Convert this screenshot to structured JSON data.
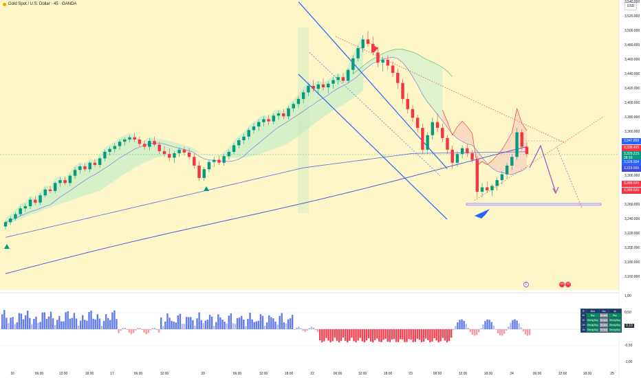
{
  "header": {
    "symbol_title": "Gold Spot / U.S. Dollar · 45 · OANDA",
    "currency": "USD"
  },
  "colors": {
    "up": "#089981",
    "down": "#f23645",
    "ma_fast": "#5b6be0",
    "ma_slow": "#3c4bd8",
    "channel": "#2962ff",
    "projection": "#9c5fc9",
    "bg_yellow": "#fdf6c4"
  },
  "price_axis": {
    "ticks": [
      "3,540.000",
      "3,520.000",
      "3,500.000",
      "3,480.000",
      "3,460.000",
      "3,440.000",
      "3,420.000",
      "3,400.000",
      "3,380.000",
      "3,360.000",
      "3,340.000",
      "3,320.000",
      "3,300.000",
      "3,280.000",
      "3,260.000",
      "3,240.000",
      "3,220.000",
      "3,200.000",
      "3,180.000",
      "3,160.000"
    ],
    "labels": [
      {
        "text": "3,347.899",
        "price": 3347.899,
        "color": "#2962ff"
      },
      {
        "text": "3,338.405",
        "price": 3338.405,
        "color": "#f23645"
      },
      {
        "text": "3,329.215",
        "price": 3329.215,
        "color": "#089981"
      },
      {
        "text": "28:16",
        "price": 3324.0,
        "color": "#089981"
      },
      {
        "text": "3,328.934",
        "price": 3318.0,
        "color": "#2962ff"
      },
      {
        "text": "3,319.555",
        "price": 3309.5,
        "color": "#3c4bd8"
      },
      {
        "text": "3,289.520",
        "price": 3288.5,
        "color": "#f23645"
      },
      {
        "text": "3,289.520",
        "price": 3279.0,
        "color": "#f23645"
      }
    ]
  },
  "osc_axis": {
    "ticks": [
      "1,00",
      "0,50",
      "0,10",
      "-0,50",
      "-1,00"
    ]
  },
  "time_axis": {
    "ticks": [
      "16",
      "06:00",
      "12:00",
      "18:00",
      "17",
      "06:00",
      "12:00",
      "20",
      "06:00",
      "12:00",
      "18:00",
      "22",
      "06:00",
      "12:00",
      "18:00",
      "23",
      "06:00",
      "12:00",
      "18:00",
      "24",
      "06:00",
      "12:00",
      "18:00",
      "25"
    ]
  },
  "rating_table": {
    "header": [
      "TF",
      "MAs",
      "Osc",
      "All"
    ],
    "rows": [
      [
        "45",
        "Buy",
        "Neutral",
        "Buy"
      ],
      [
        "1D",
        "Strong Buy",
        "Neutral",
        "Strong Buy"
      ],
      [
        "1W",
        "Strong Buy",
        "Neutral",
        "Strong Buy"
      ],
      [
        "1M",
        "Strong Buy",
        "Neutral",
        "Strong Buy"
      ]
    ]
  },
  "events": [
    "F",
    "US",
    "US"
  ],
  "chart_data": {
    "type": "candlestick",
    "title": "Gold Spot / U.S. Dollar · 45 · OANDA",
    "xlabel": "",
    "ylabel": "",
    "ylim": [
      3150,
      3550
    ],
    "candles": [
      [
        3230,
        3238,
        3226,
        3236
      ],
      [
        3236,
        3244,
        3232,
        3241
      ],
      [
        3241,
        3250,
        3238,
        3247
      ],
      [
        3247,
        3258,
        3244,
        3255
      ],
      [
        3255,
        3262,
        3250,
        3258
      ],
      [
        3258,
        3270,
        3254,
        3267
      ],
      [
        3267,
        3272,
        3260,
        3263
      ],
      [
        3263,
        3276,
        3260,
        3273
      ],
      [
        3273,
        3284,
        3270,
        3281
      ],
      [
        3281,
        3286,
        3276,
        3279
      ],
      [
        3279,
        3292,
        3276,
        3290
      ],
      [
        3290,
        3298,
        3285,
        3294
      ],
      [
        3294,
        3299,
        3287,
        3290
      ],
      [
        3290,
        3302,
        3286,
        3300
      ],
      [
        3300,
        3312,
        3296,
        3308
      ],
      [
        3308,
        3316,
        3303,
        3313
      ],
      [
        3313,
        3318,
        3306,
        3309
      ],
      [
        3309,
        3320,
        3305,
        3318
      ],
      [
        3318,
        3323,
        3312,
        3315
      ],
      [
        3315,
        3326,
        3311,
        3324
      ],
      [
        3324,
        3336,
        3320,
        3333
      ],
      [
        3333,
        3340,
        3328,
        3337
      ],
      [
        3337,
        3345,
        3332,
        3341
      ],
      [
        3341,
        3350,
        3336,
        3347
      ],
      [
        3347,
        3353,
        3342,
        3350
      ],
      [
        3350,
        3356,
        3346,
        3353
      ],
      [
        3353,
        3359,
        3347,
        3350
      ],
      [
        3350,
        3354,
        3340,
        3344
      ],
      [
        3344,
        3349,
        3336,
        3340
      ],
      [
        3340,
        3352,
        3335,
        3348
      ],
      [
        3348,
        3354,
        3340,
        3343
      ],
      [
        3343,
        3347,
        3330,
        3334
      ],
      [
        3334,
        3341,
        3326,
        3330
      ],
      [
        3330,
        3338,
        3320,
        3325
      ],
      [
        3325,
        3334,
        3318,
        3331
      ],
      [
        3331,
        3339,
        3326,
        3336
      ],
      [
        3336,
        3340,
        3328,
        3332
      ],
      [
        3332,
        3338,
        3322,
        3326
      ],
      [
        3326,
        3331,
        3310,
        3314
      ],
      [
        3314,
        3320,
        3293,
        3297
      ],
      [
        3297,
        3312,
        3293,
        3309
      ],
      [
        3309,
        3322,
        3305,
        3319
      ],
      [
        3319,
        3326,
        3312,
        3322
      ],
      [
        3322,
        3328,
        3315,
        3318
      ],
      [
        3318,
        3330,
        3314,
        3327
      ],
      [
        3327,
        3336,
        3322,
        3333
      ],
      [
        3333,
        3345,
        3330,
        3342
      ],
      [
        3342,
        3352,
        3338,
        3349
      ],
      [
        3349,
        3358,
        3344,
        3354
      ],
      [
        3354,
        3366,
        3350,
        3363
      ],
      [
        3363,
        3372,
        3358,
        3368
      ],
      [
        3368,
        3378,
        3362,
        3374
      ],
      [
        3374,
        3382,
        3368,
        3378
      ],
      [
        3378,
        3384,
        3370,
        3375
      ],
      [
        3375,
        3386,
        3371,
        3383
      ],
      [
        3383,
        3390,
        3377,
        3386
      ],
      [
        3386,
        3392,
        3378,
        3382
      ],
      [
        3382,
        3396,
        3378,
        3393
      ],
      [
        3393,
        3402,
        3388,
        3399
      ],
      [
        3399,
        3410,
        3394,
        3406
      ],
      [
        3406,
        3418,
        3400,
        3415
      ],
      [
        3415,
        3428,
        3410,
        3424
      ],
      [
        3424,
        3432,
        3416,
        3420
      ],
      [
        3420,
        3430,
        3412,
        3426
      ],
      [
        3426,
        3434,
        3418,
        3422
      ],
      [
        3422,
        3430,
        3414,
        3427
      ],
      [
        3427,
        3436,
        3420,
        3432
      ],
      [
        3432,
        3440,
        3426,
        3436
      ],
      [
        3436,
        3442,
        3428,
        3431
      ],
      [
        3431,
        3448,
        3428,
        3446
      ],
      [
        3446,
        3466,
        3440,
        3462
      ],
      [
        3462,
        3480,
        3458,
        3476
      ],
      [
        3476,
        3494,
        3470,
        3488
      ],
      [
        3488,
        3500,
        3478,
        3482
      ],
      [
        3482,
        3492,
        3466,
        3470
      ],
      [
        3470,
        3478,
        3450,
        3456
      ],
      [
        3456,
        3464,
        3444,
        3460
      ],
      [
        3460,
        3466,
        3446,
        3452
      ],
      [
        3452,
        3458,
        3436,
        3442
      ],
      [
        3442,
        3448,
        3420,
        3428
      ],
      [
        3428,
        3434,
        3400,
        3406
      ],
      [
        3406,
        3414,
        3386,
        3392
      ],
      [
        3392,
        3398,
        3374,
        3380
      ],
      [
        3380,
        3384,
        3360,
        3366
      ],
      [
        3366,
        3372,
        3330,
        3336
      ],
      [
        3336,
        3360,
        3330,
        3356
      ],
      [
        3356,
        3380,
        3350,
        3374
      ],
      [
        3374,
        3386,
        3360,
        3366
      ],
      [
        3366,
        3372,
        3346,
        3352
      ],
      [
        3352,
        3356,
        3330,
        3336
      ],
      [
        3336,
        3342,
        3310,
        3318
      ],
      [
        3318,
        3334,
        3312,
        3330
      ],
      [
        3330,
        3342,
        3324,
        3338
      ],
      [
        3338,
        3344,
        3326,
        3331
      ],
      [
        3331,
        3336,
        3318,
        3322
      ],
      [
        3322,
        3328,
        3270,
        3278
      ],
      [
        3278,
        3290,
        3270,
        3284
      ],
      [
        3284,
        3292,
        3276,
        3280
      ],
      [
        3280,
        3288,
        3272,
        3286
      ],
      [
        3286,
        3298,
        3280,
        3294
      ],
      [
        3294,
        3306,
        3288,
        3302
      ],
      [
        3302,
        3318,
        3296,
        3314
      ],
      [
        3314,
        3330,
        3308,
        3326
      ],
      [
        3326,
        3366,
        3322,
        3360
      ],
      [
        3360,
        3364,
        3336,
        3340
      ],
      [
        3340,
        3346,
        3326,
        3330
      ]
    ],
    "annotations": [
      "descending channel",
      "falling trendline",
      "support zone 3,260",
      "projection path"
    ]
  }
}
